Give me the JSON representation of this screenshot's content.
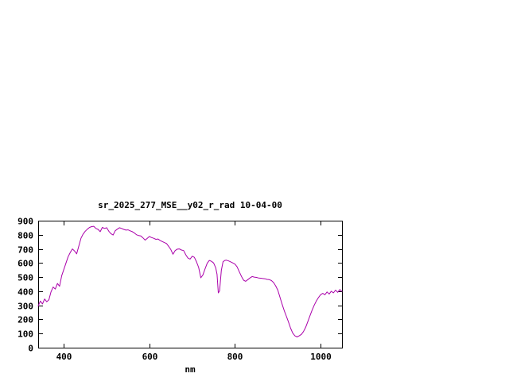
{
  "chart_data": {
    "type": "line",
    "title": "sr_2025_277_MSE__y02_r_rad 10-04-00",
    "xlabel": "nm",
    "ylabel": "",
    "xlim": [
      340,
      1050
    ],
    "ylim": [
      0,
      900
    ],
    "x_ticks": [
      400,
      600,
      800,
      1000
    ],
    "y_ticks": [
      0,
      100,
      200,
      300,
      400,
      500,
      600,
      700,
      800,
      900
    ],
    "grid": false,
    "legend": "none",
    "line_color": "#aa00aa",
    "x": [
      340,
      345,
      350,
      355,
      360,
      365,
      370,
      375,
      380,
      385,
      390,
      395,
      400,
      405,
      410,
      415,
      420,
      425,
      430,
      435,
      440,
      445,
      450,
      455,
      460,
      465,
      470,
      475,
      480,
      485,
      490,
      495,
      500,
      505,
      510,
      515,
      520,
      525,
      530,
      535,
      540,
      545,
      550,
      555,
      560,
      565,
      570,
      575,
      580,
      585,
      590,
      595,
      600,
      605,
      610,
      615,
      620,
      625,
      630,
      635,
      640,
      645,
      650,
      655,
      660,
      665,
      670,
      675,
      680,
      685,
      690,
      695,
      700,
      705,
      710,
      715,
      720,
      725,
      730,
      735,
      740,
      745,
      750,
      755,
      758,
      761,
      764,
      768,
      772,
      776,
      780,
      785,
      790,
      795,
      800,
      805,
      810,
      815,
      820,
      825,
      830,
      835,
      840,
      845,
      850,
      855,
      860,
      865,
      870,
      875,
      880,
      885,
      890,
      895,
      900,
      905,
      910,
      915,
      920,
      925,
      930,
      935,
      940,
      945,
      950,
      955,
      960,
      965,
      970,
      975,
      980,
      985,
      990,
      995,
      1000,
      1005,
      1010,
      1015,
      1020,
      1025,
      1030,
      1035,
      1040,
      1045,
      1050
    ],
    "y": [
      295,
      330,
      310,
      345,
      325,
      340,
      395,
      430,
      415,
      455,
      435,
      510,
      555,
      600,
      645,
      675,
      700,
      685,
      665,
      720,
      775,
      805,
      825,
      840,
      852,
      858,
      860,
      845,
      838,
      822,
      852,
      845,
      850,
      825,
      808,
      798,
      828,
      840,
      850,
      845,
      838,
      833,
      835,
      828,
      822,
      812,
      800,
      795,
      792,
      778,
      762,
      775,
      788,
      780,
      775,
      768,
      770,
      760,
      752,
      745,
      738,
      718,
      695,
      662,
      688,
      698,
      700,
      692,
      688,
      658,
      635,
      628,
      648,
      640,
      608,
      568,
      495,
      515,
      558,
      598,
      618,
      612,
      600,
      565,
      520,
      388,
      402,
      548,
      608,
      618,
      620,
      615,
      608,
      600,
      592,
      572,
      538,
      505,
      478,
      470,
      482,
      494,
      504,
      500,
      498,
      494,
      492,
      490,
      488,
      484,
      482,
      476,
      462,
      438,
      408,
      358,
      308,
      262,
      222,
      182,
      138,
      103,
      84,
      76,
      84,
      94,
      114,
      144,
      184,
      224,
      264,
      300,
      330,
      355,
      375,
      385,
      375,
      395,
      380,
      400,
      388,
      408,
      392,
      412,
      398
    ]
  }
}
